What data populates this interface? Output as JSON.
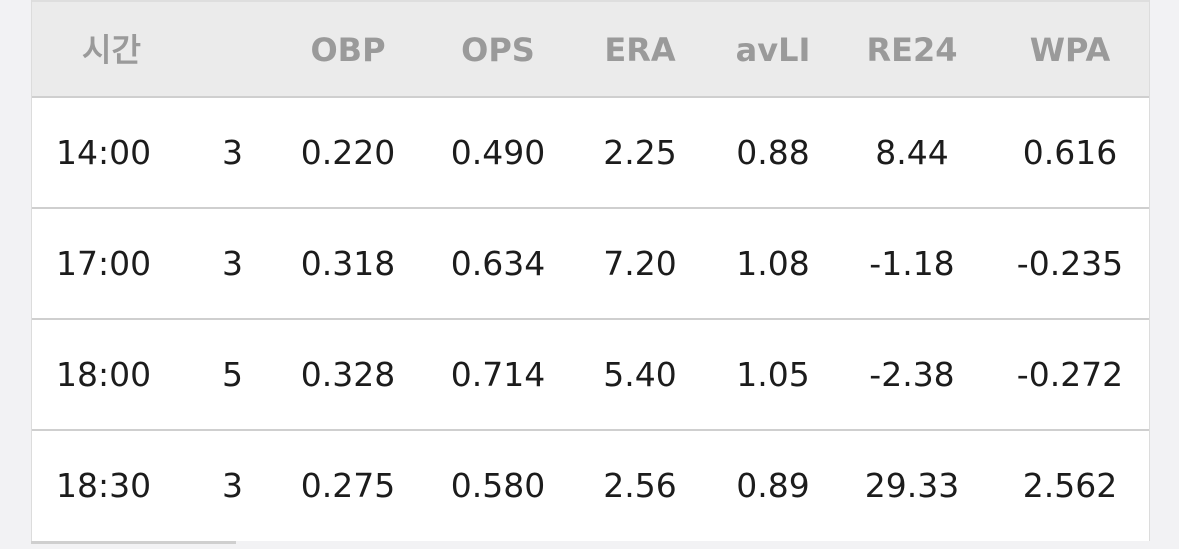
{
  "table": {
    "headers": {
      "time": "시간",
      "obp": "OBP",
      "ops": "OPS",
      "era": "ERA",
      "avli": "avLI",
      "re24": "RE24",
      "wpa": "WPA"
    },
    "rows": [
      {
        "time": "14:00",
        "clipped": "3",
        "obp": "0.220",
        "ops": "0.490",
        "era": "2.25",
        "avli": "0.88",
        "re24": "8.44",
        "wpa": "0.616"
      },
      {
        "time": "17:00",
        "clipped": "3",
        "obp": "0.318",
        "ops": "0.634",
        "era": "7.20",
        "avli": "1.08",
        "re24": "-1.18",
        "wpa": "-0.235"
      },
      {
        "time": "18:00",
        "clipped": "5",
        "obp": "0.328",
        "ops": "0.714",
        "era": "5.40",
        "avli": "1.05",
        "re24": "-2.38",
        "wpa": "-0.272"
      },
      {
        "time": "18:30",
        "clipped": "3",
        "obp": "0.275",
        "ops": "0.580",
        "era": "2.56",
        "avli": "0.89",
        "re24": "29.33",
        "wpa": "2.562"
      }
    ]
  }
}
